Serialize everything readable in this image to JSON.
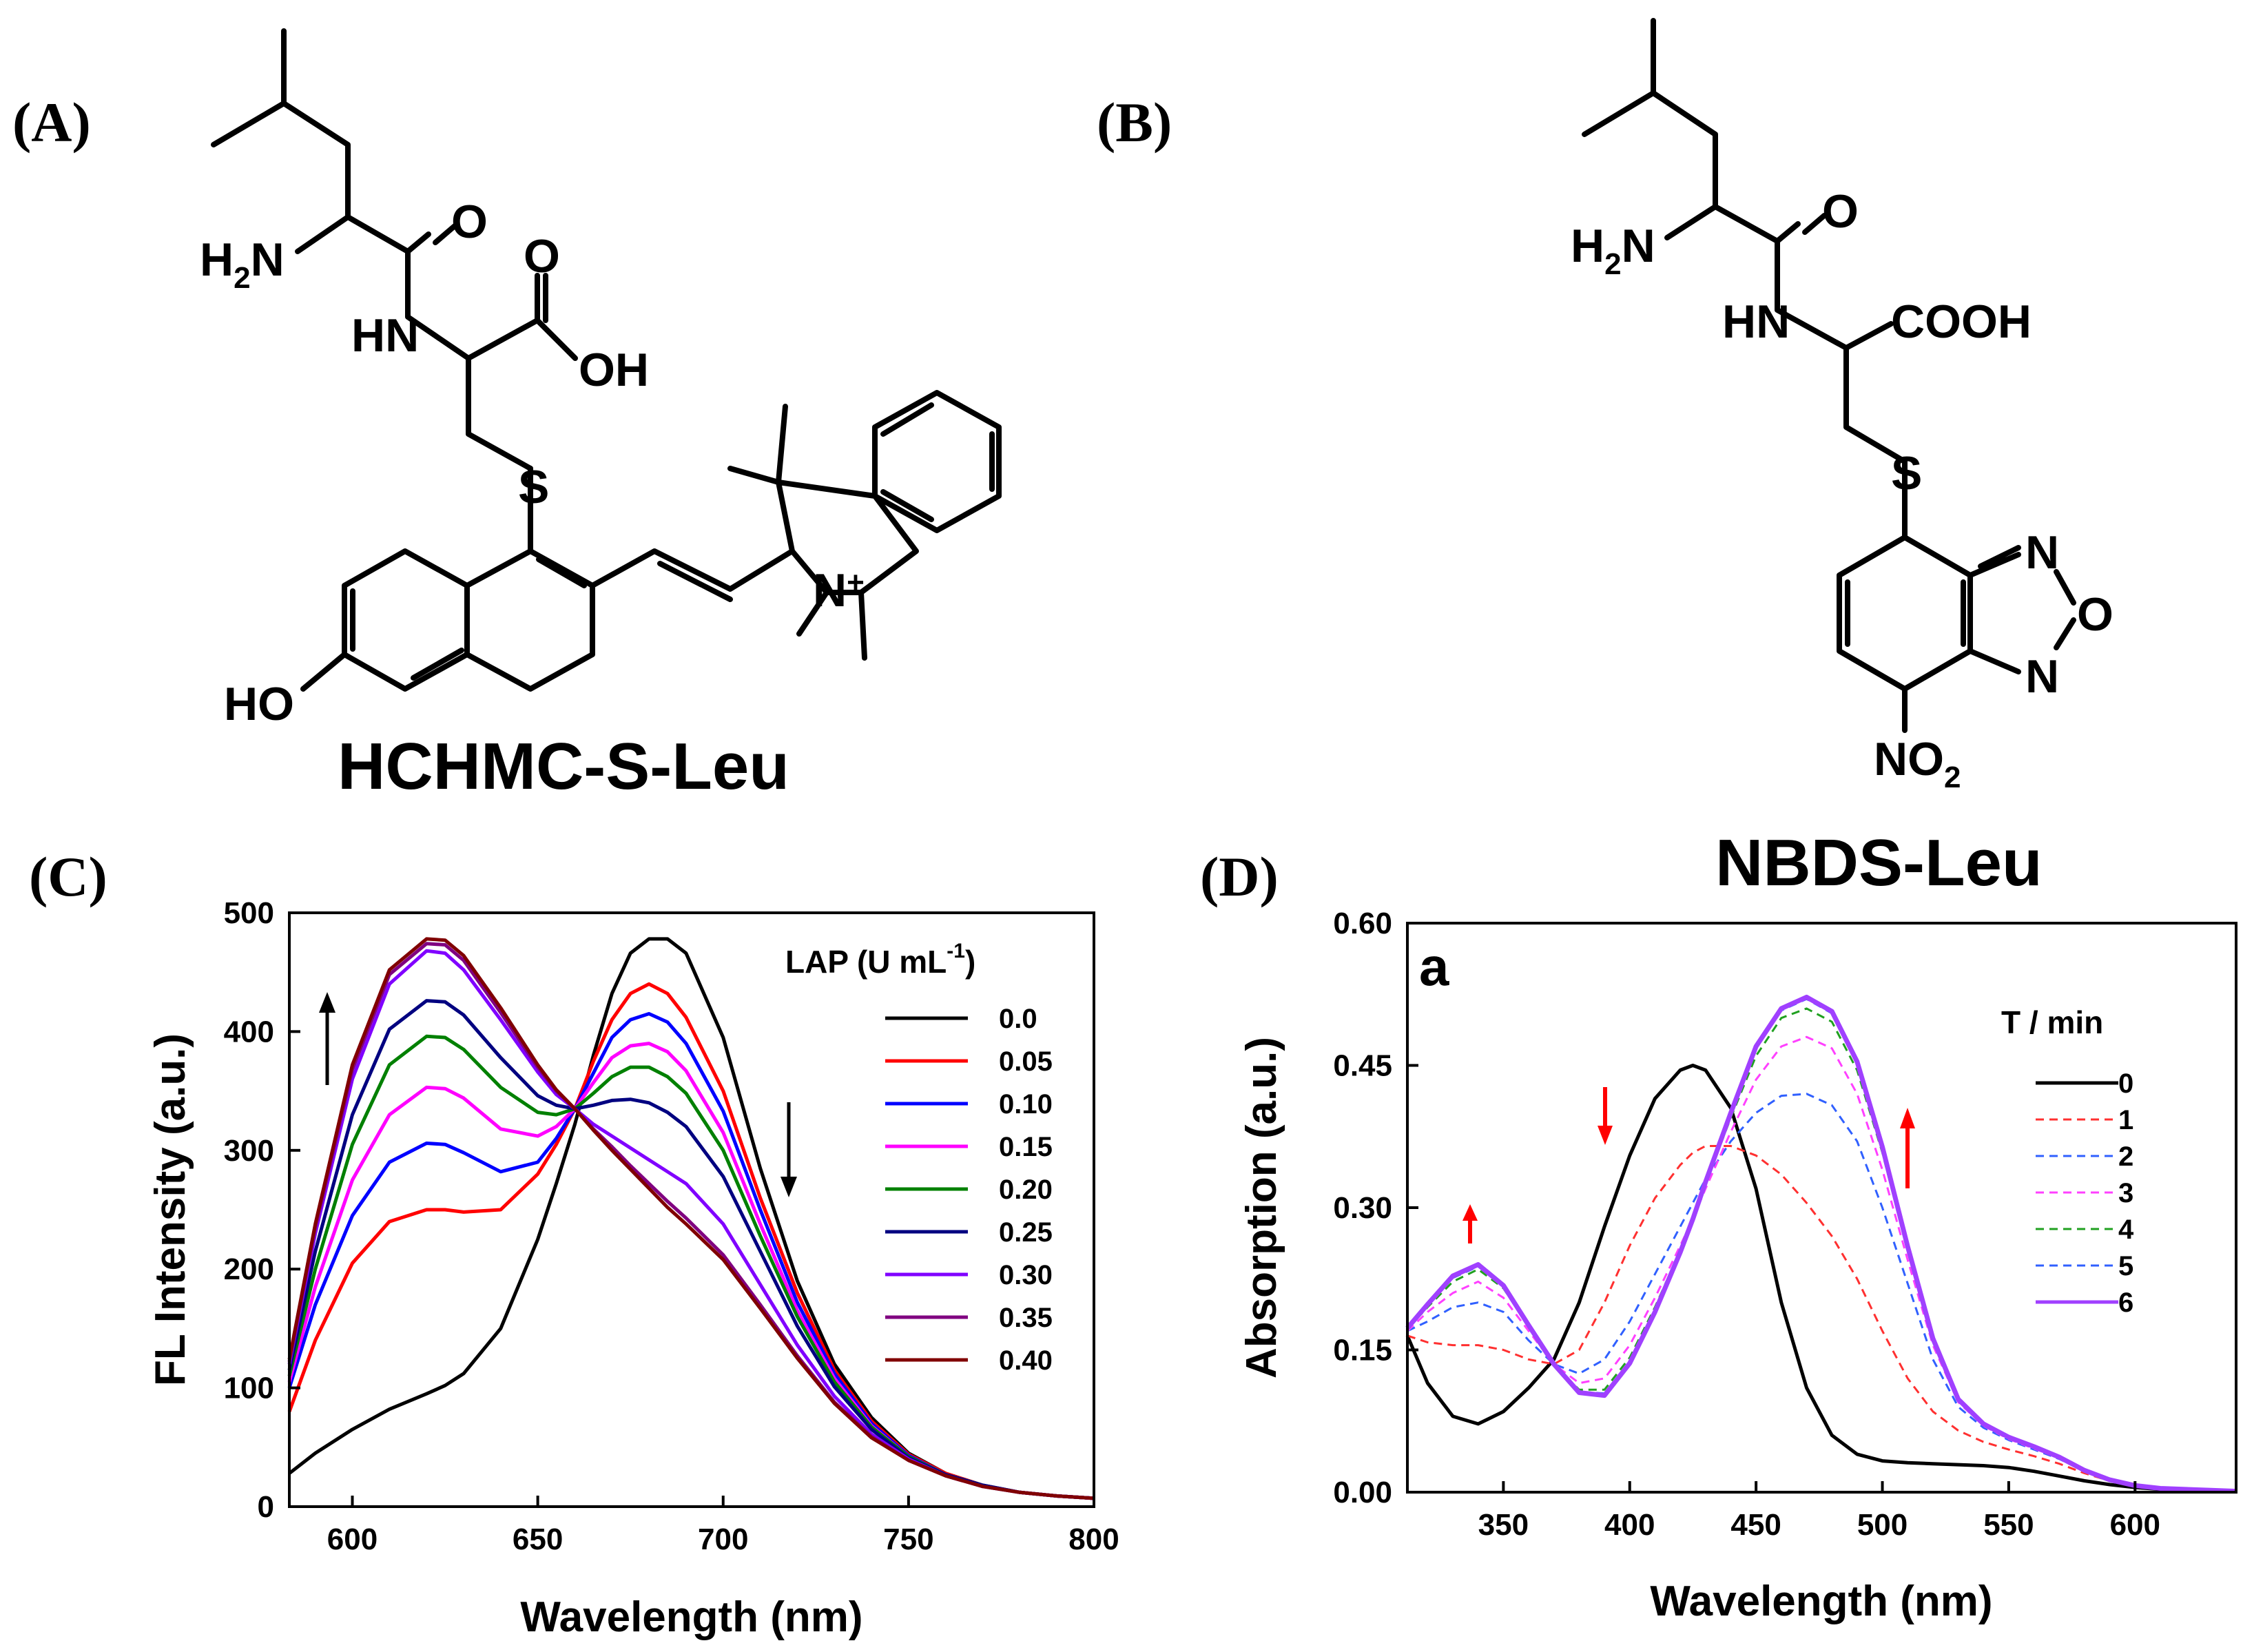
{
  "panels": {
    "A": {
      "letter": "(A)",
      "name": "HCHMC-S-Leu"
    },
    "B": {
      "letter": "(B)",
      "name": "NBDS-Leu"
    },
    "C": {
      "letter": "(C)"
    },
    "D": {
      "letter": "(D)"
    }
  },
  "chem_labels": {
    "H2N": "H",
    "H2N_sub": "2",
    "H2N_N": "N",
    "O": "O",
    "HN": "HN",
    "OH": "OH",
    "S": "S",
    "HO": "HO",
    "Nplus": "N",
    "plus": "+",
    "COOH": "COOH",
    "N": "N",
    "Oring": "O",
    "NO2": "NO",
    "NO2_sub": "2"
  },
  "chart_data": [
    {
      "type": "line",
      "panel": "C",
      "xlabel": "Wavelength (nm)",
      "ylabel": "FL Intensity (a.u.)",
      "xlim": [
        583,
        800
      ],
      "ylim": [
        0,
        500
      ],
      "xticks": [
        600,
        650,
        700,
        750,
        800
      ],
      "yticks": [
        0,
        100,
        200,
        300,
        400,
        500
      ],
      "legend_title": "LAP  (U mL",
      "legend_title_sup": "-1",
      "legend_title_end": ")",
      "legend_position": "right",
      "x": [
        583,
        590,
        600,
        610,
        620,
        625,
        630,
        640,
        650,
        655,
        660,
        665,
        670,
        675,
        680,
        685,
        690,
        700,
        710,
        720,
        730,
        740,
        750,
        760,
        770,
        780,
        790,
        800
      ],
      "series": [
        {
          "name": "0.0",
          "color": "#000000",
          "values": [
            28,
            45,
            65,
            82,
            95,
            102,
            112,
            150,
            225,
            272,
            322,
            380,
            432,
            466,
            478,
            478,
            466,
            395,
            285,
            190,
            120,
            75,
            45,
            28,
            18,
            12,
            9,
            7
          ]
        },
        {
          "name": "0.05",
          "color": "#ff0000",
          "values": [
            80,
            140,
            205,
            240,
            250,
            250,
            248,
            250,
            280,
            305,
            335,
            375,
            410,
            432,
            440,
            432,
            412,
            350,
            260,
            180,
            115,
            72,
            44,
            28,
            18,
            12,
            9,
            7
          ]
        },
        {
          "name": "0.10",
          "color": "#0000ff",
          "values": [
            100,
            170,
            245,
            290,
            306,
            305,
            298,
            282,
            290,
            310,
            335,
            365,
            395,
            410,
            415,
            408,
            390,
            333,
            250,
            172,
            112,
            70,
            43,
            27,
            18,
            12,
            9,
            7
          ]
        },
        {
          "name": "0.15",
          "color": "#ff00ff",
          "values": [
            105,
            185,
            275,
            330,
            353,
            352,
            344,
            318,
            312,
            320,
            335,
            357,
            378,
            388,
            390,
            383,
            367,
            315,
            238,
            165,
            108,
            68,
            42,
            27,
            18,
            12,
            9,
            7
          ]
        },
        {
          "name": "0.20",
          "color": "#008000",
          "values": [
            110,
            200,
            305,
            372,
            396,
            395,
            385,
            353,
            332,
            330,
            335,
            348,
            362,
            370,
            370,
            362,
            348,
            300,
            228,
            160,
            105,
            67,
            42,
            27,
            18,
            12,
            9,
            7
          ]
        },
        {
          "name": "0.25",
          "color": "#000080",
          "values": [
            115,
            215,
            330,
            402,
            426,
            425,
            414,
            378,
            346,
            338,
            335,
            338,
            342,
            343,
            340,
            332,
            320,
            278,
            215,
            152,
            101,
            65,
            41,
            27,
            18,
            12,
            9,
            7
          ]
        },
        {
          "name": "0.30",
          "color": "#8000ff",
          "values": [
            120,
            230,
            360,
            440,
            468,
            466,
            452,
            410,
            366,
            347,
            335,
            322,
            312,
            302,
            292,
            282,
            272,
            238,
            187,
            136,
            93,
            61,
            40,
            26,
            17,
            12,
            9,
            7
          ]
        },
        {
          "name": "0.35",
          "color": "#800080",
          "values": [
            122,
            235,
            368,
            448,
            474,
            473,
            460,
            416,
            370,
            350,
            335,
            318,
            303,
            287,
            272,
            257,
            243,
            212,
            170,
            127,
            88,
            59,
            39,
            26,
            17,
            12,
            9,
            7
          ]
        },
        {
          "name": "0.40",
          "color": "#800000",
          "values": [
            124,
            238,
            372,
            452,
            478,
            477,
            464,
            420,
            372,
            351,
            335,
            317,
            300,
            284,
            268,
            252,
            238,
            208,
            167,
            125,
            87,
            58,
            39,
            26,
            17,
            12,
            9,
            7
          ]
        }
      ]
    },
    {
      "type": "line",
      "panel": "D",
      "inset_label": "a",
      "xlabel": "Wavelength (nm)",
      "ylabel": "Absorption (a.u.)",
      "xlim": [
        312,
        640
      ],
      "ylim": [
        0,
        0.6
      ],
      "xticks": [
        350,
        400,
        450,
        500,
        550,
        600
      ],
      "yticks": [
        "0.00",
        "0.15",
        "0.30",
        "0.45",
        "0.60"
      ],
      "legend_title": "T / min",
      "legend_position": "right",
      "x": [
        312,
        320,
        330,
        340,
        350,
        360,
        370,
        380,
        390,
        400,
        410,
        420,
        425,
        430,
        440,
        450,
        460,
        470,
        480,
        490,
        500,
        510,
        520,
        530,
        540,
        550,
        560,
        570,
        580,
        590,
        600,
        610,
        620,
        630,
        640
      ],
      "series": [
        {
          "name": "0",
          "color": "#000000",
          "dash": false,
          "values": [
            0.165,
            0.115,
            0.08,
            0.072,
            0.085,
            0.11,
            0.14,
            0.2,
            0.28,
            0.355,
            0.415,
            0.445,
            0.45,
            0.445,
            0.405,
            0.32,
            0.2,
            0.11,
            0.06,
            0.04,
            0.033,
            0.031,
            0.03,
            0.029,
            0.028,
            0.026,
            0.022,
            0.017,
            0.012,
            0.008,
            0.005,
            0.003,
            0.002,
            0.001,
            0.001
          ]
        },
        {
          "name": "1",
          "color": "#ff3030",
          "dash": true,
          "values": [
            0.165,
            0.158,
            0.155,
            0.155,
            0.15,
            0.14,
            0.135,
            0.15,
            0.2,
            0.26,
            0.31,
            0.345,
            0.358,
            0.365,
            0.365,
            0.355,
            0.335,
            0.305,
            0.27,
            0.225,
            0.17,
            0.12,
            0.085,
            0.065,
            0.053,
            0.045,
            0.038,
            0.03,
            0.02,
            0.012,
            0.007,
            0.004,
            0.003,
            0.002,
            0.001
          ]
        },
        {
          "name": "2",
          "color": "#3060ff",
          "dash": true,
          "values": [
            0.17,
            0.18,
            0.195,
            0.2,
            0.19,
            0.16,
            0.135,
            0.125,
            0.14,
            0.18,
            0.23,
            0.28,
            0.305,
            0.33,
            0.37,
            0.4,
            0.418,
            0.42,
            0.408,
            0.37,
            0.3,
            0.22,
            0.14,
            0.09,
            0.068,
            0.055,
            0.045,
            0.035,
            0.022,
            0.013,
            0.007,
            0.004,
            0.003,
            0.002,
            0.001
          ]
        },
        {
          "name": "3",
          "color": "#ff40ff",
          "dash": true,
          "values": [
            0.17,
            0.19,
            0.21,
            0.222,
            0.205,
            0.17,
            0.135,
            0.115,
            0.12,
            0.155,
            0.205,
            0.26,
            0.288,
            0.32,
            0.38,
            0.435,
            0.47,
            0.48,
            0.468,
            0.42,
            0.34,
            0.245,
            0.155,
            0.095,
            0.07,
            0.056,
            0.046,
            0.036,
            0.022,
            0.013,
            0.007,
            0.004,
            0.003,
            0.002,
            0.001
          ]
        },
        {
          "name": "4",
          "color": "#20a020",
          "dash": true,
          "values": [
            0.172,
            0.195,
            0.222,
            0.235,
            0.215,
            0.175,
            0.135,
            0.108,
            0.108,
            0.142,
            0.195,
            0.255,
            0.288,
            0.325,
            0.395,
            0.46,
            0.5,
            0.51,
            0.496,
            0.445,
            0.358,
            0.255,
            0.16,
            0.097,
            0.071,
            0.057,
            0.047,
            0.036,
            0.022,
            0.013,
            0.007,
            0.004,
            0.003,
            0.002,
            0.001
          ]
        },
        {
          "name": "5",
          "color": "#3060ff",
          "dash": true,
          "values": [
            0.172,
            0.197,
            0.226,
            0.238,
            0.217,
            0.176,
            0.135,
            0.106,
            0.104,
            0.138,
            0.192,
            0.254,
            0.288,
            0.326,
            0.398,
            0.468,
            0.508,
            0.52,
            0.505,
            0.452,
            0.362,
            0.258,
            0.161,
            0.097,
            0.071,
            0.057,
            0.047,
            0.036,
            0.022,
            0.013,
            0.007,
            0.004,
            0.003,
            0.002,
            0.001
          ]
        },
        {
          "name": "6",
          "color": "#a040ff",
          "dash": false,
          "values": [
            0.173,
            0.198,
            0.228,
            0.24,
            0.218,
            0.176,
            0.135,
            0.105,
            0.102,
            0.136,
            0.19,
            0.253,
            0.288,
            0.327,
            0.4,
            0.47,
            0.51,
            0.522,
            0.507,
            0.454,
            0.364,
            0.259,
            0.162,
            0.098,
            0.072,
            0.058,
            0.048,
            0.037,
            0.023,
            0.013,
            0.007,
            0.004,
            0.003,
            0.002,
            0.001
          ]
        }
      ]
    }
  ]
}
